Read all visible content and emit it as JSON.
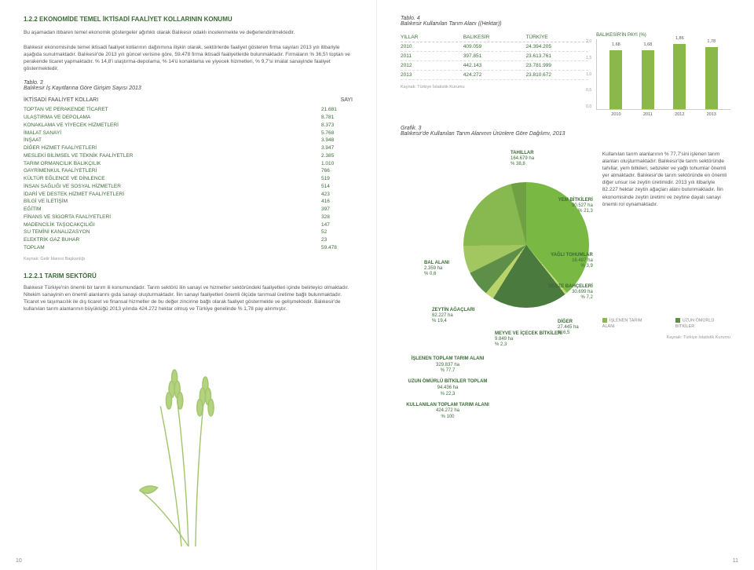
{
  "sec122": {
    "title": "1.2.2 EKONOMİDE TEMEL İKTİSADİ FAALİYET KOLLARININ KONUMU",
    "p1": "Bu aşamadan itibaren temel ekonomik göstergeler ağırlıklı olarak Balıkesir odaklı incelenmekte ve değerlendirilmektedir.",
    "p2": "Balıkesir ekonomisinde temel iktisadi faaliyet kollarının dağılımına ilişkin olarak, sektörlerde faaliyet gösteren firma sayıları 2013 yılı itibariyle aşağıda sunulmaktadır. Balıkesir'de 2013 yılı güncel verisine göre, 59.478 firma iktisadi faaliyetlerde bulunmaktadır. Firmaların % 36,5'i toptan ve perakende ticaret yapmaktadır. % 14,8'i ulaştırma-depolama, % 14'ü konaklama ve yiyecek hizmetleri, % 9,7'si imalat sanayinde faaliyet göstermektedir."
  },
  "tablo3": {
    "caption": "Tablo. 3",
    "subtitle": "Balıkesir İş Kayıtlarına Göre Girişim Sayısı 2013",
    "head": {
      "c1": "İKTİSADİ FAALİYET KOLLARI",
      "c2": "SAYI"
    },
    "rows": [
      {
        "l": "TOPTAN VE PERAKENDE TİCARET",
        "v": "21.681"
      },
      {
        "l": "ULAŞTIRMA VE DEPOLAMA",
        "v": "8.781"
      },
      {
        "l": "KONAKLAMA VE YİYECEK HİZMETLERİ",
        "v": "8.373"
      },
      {
        "l": "İMALAT SANAYİ",
        "v": "5.768"
      },
      {
        "l": "İNŞAAT",
        "v": "3.948"
      },
      {
        "l": "DİĞER HİZMET FAALİYETLERİ",
        "v": "3.947"
      },
      {
        "l": "MESLEKİ BİLİMSEL VE TEKNİK FAALİYETLER",
        "v": "2.385"
      },
      {
        "l": "TARIM ORMANCILIK BALIKÇILIK",
        "v": "1.010"
      },
      {
        "l": "GAYRİMENKUL FAALİYETLERİ",
        "v": "766"
      },
      {
        "l": "KÜLTÜR EĞLENCE VE DİNLENCE",
        "v": "519"
      },
      {
        "l": "İNSAN SAĞLIĞI VE SOSYAL HİZMETLER",
        "v": "514"
      },
      {
        "l": "İDARİ VE DESTEK HİZMET FAALİYETLERİ",
        "v": "423"
      },
      {
        "l": "BİLGİ VE İLETİŞİM",
        "v": "416"
      },
      {
        "l": "EĞİTİM",
        "v": "397"
      },
      {
        "l": "FİNANS VE SİGORTA FAALİYETLERİ",
        "v": "328"
      },
      {
        "l": "MADENCİLİK TAŞOCAKÇILIĞI",
        "v": "147"
      },
      {
        "l": "SU TEMİNİ KANALİZASYON",
        "v": "52"
      },
      {
        "l": "ELEKTRİK GAZ BUHAR",
        "v": "23"
      },
      {
        "l": "TOPLAM",
        "v": "59.478"
      }
    ],
    "source": "Kaynak: Gelir İdaresi Başkanlığı"
  },
  "sec1221": {
    "title": "1.2.2.1 TARIM SEKTÖRÜ",
    "p": "Balıkesir Türkiye'nin önemli bir tarım ili konumundadır. Tarım sektörü ilin sanayi ve hizmetler sektöründeki faaliyetleri içinde belirleyici olmaktadır. Nitekim sanayinin en önemli alanlarını gıda sanayi oluşturmaktadır. İlin sanayi faaliyetleri önemli ölçüde tarımsal üretime bağlı bulunmaktadır. Ticaret ve taşımacılık ile dış ticaret ve finansal hizmetler de bu değer zincirine bağlı olarak faaliyet göstermekte ve gelişmektedir. Balıkesir'de kullanılan tarım alanlarının büyüklüğü 2013 yılında 424.272 hektar olmuş ve Türkiye genelinde % 1,78 pay alınmıştır."
  },
  "tablo4": {
    "caption": "Tablo. 4",
    "subtitle": "Balıkesir Kullanılan Tarım Alanı ((Hektar))",
    "head": {
      "c1": "YILLAR",
      "c2": "BALIKESİR",
      "c3": "TÜRKİYE"
    },
    "rows": [
      {
        "y": "2010",
        "b": "409.059",
        "t": "24.394.205"
      },
      {
        "y": "2011",
        "b": "397.851",
        "t": "23.613.761"
      },
      {
        "y": "2012",
        "b": "442.143",
        "t": "23.781.999"
      },
      {
        "y": "2013",
        "b": "424.272",
        "t": "23.810.672"
      }
    ],
    "source": "Kaynak: Türkiye İstatistik Kurumu"
  },
  "barchart": {
    "title": "BALIKESİR'İN PAYI (%)",
    "ylim": [
      0,
      2
    ],
    "ytick": 0.5,
    "bars": [
      {
        "x": "2010",
        "v": 1.68
      },
      {
        "x": "2011",
        "v": 1.68
      },
      {
        "x": "2012",
        "v": 1.86
      },
      {
        "x": "2013",
        "v": 1.78
      }
    ],
    "color": "#8bb84a"
  },
  "grafik3": {
    "caption": "Grafik. 3",
    "subtitle": "Balıkesir'de Kullanılan Tarım Alanının Ürünlere Göre Dağılımı, 2013",
    "slices": [
      {
        "name": "TAHILLAR",
        "ha": "164.679 ha",
        "pct": "% 38,8"
      },
      {
        "name": "BAL ALANI",
        "ha": "2.359 ha",
        "pct": "% 0,6"
      },
      {
        "name": "ZEYTİN AĞAÇLARI",
        "ha": "82.227 ha",
        "pct": "% 19,4"
      },
      {
        "name": "MEYVE VE İÇECEK BİTKİLERİ",
        "ha": "9.849 ha",
        "pct": "% 2,3"
      },
      {
        "name": "DİĞER",
        "ha": "27.445 ha",
        "pct": "% 6,5"
      },
      {
        "name": "SEBZE BAHÇELERİ",
        "ha": "30.699 ha",
        "pct": "% 7,2"
      },
      {
        "name": "YAĞLI TOHUMLAR",
        "ha": "16.487 ha",
        "pct": "% 3,9"
      },
      {
        "name": "YEM BİTKİLERİ",
        "ha": "90.527 ha",
        "pct": "% 21,3"
      }
    ],
    "center": [
      {
        "t1": "İŞLENEN TOPLAM TARIM ALANI",
        "t2": "329.837 ha",
        "t3": "% 77,7"
      },
      {
        "t1": "UZUN ÖMÜRLÜ BİTKİLER TOPLAM",
        "t2": "94.436 ha",
        "t3": "% 22,3"
      },
      {
        "t1": "KULLANILAN TOPLAM TARIM ALANI",
        "t2": "424.272 ha",
        "t3": "% 100"
      }
    ],
    "legend": {
      "a": "İŞLENEN TARIM ALANI",
      "b": "UZUN ÖMÜRLÜ BİTKİLER"
    },
    "source": "Kaynak: Türkiye İstatistik Kurumu"
  },
  "sidetext": "Kullanılan tarım alanlarının % 77,7'sini işlenen tarım alanları oluşturmaktadır. Balıkesir'de tarım sektöründe tahıllar, yem bitkileri, sebzeler ve yağlı tohumlar önemli yer almaktadır. Balıkesir'de tarım sektöründe en önemli diğer unsur ise zeytin üretimidir. 2013 yılı itibariyle 82.227 hektar zeytin ağaçları alanı bulunmaktadır. İlin ekonomisinde zeytin üretimi ve zeytine dayalı sanayi önemli rol oynamaktadır.",
  "pg": {
    "l": "10",
    "r": "11"
  }
}
